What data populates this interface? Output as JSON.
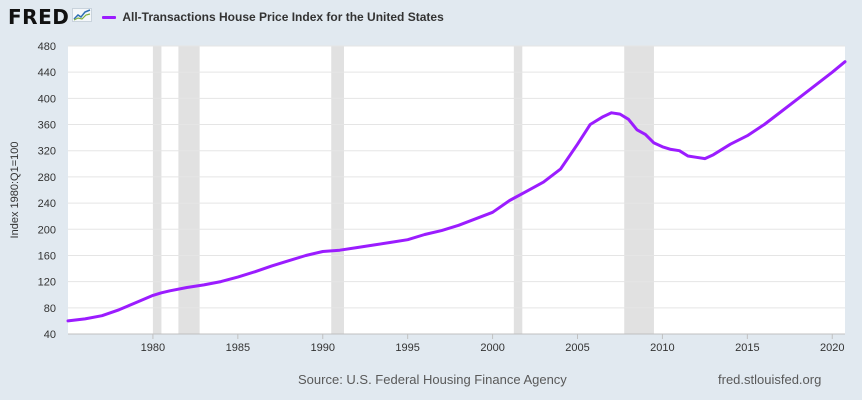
{
  "header": {
    "logo_text": "FRED",
    "logo_icon": "trend-line-chart-icon"
  },
  "footer": {
    "source": "Source: U.S. Federal Housing Finance Agency",
    "url": "fred.stlouisfed.org"
  },
  "colors": {
    "series": "#9b1cff",
    "recession": "#e1e1e1",
    "gridline": "#e5e5e5",
    "background": "#e1e9f0",
    "plot_background": "#ffffff"
  },
  "chart_data": {
    "type": "line",
    "title": "",
    "xlabel": "",
    "ylabel": "Index 1980:Q1=100",
    "xlim": [
      1975.0,
      2020.75
    ],
    "ylim": [
      40,
      480
    ],
    "x_ticks": [
      1980,
      1985,
      1990,
      1995,
      2000,
      2005,
      2010,
      2015,
      2020
    ],
    "y_ticks": [
      40,
      80,
      120,
      160,
      200,
      240,
      280,
      320,
      360,
      400,
      440,
      480
    ],
    "grid": true,
    "legend_position": "top-left",
    "recessions": [
      [
        1980.0,
        1980.5
      ],
      [
        1981.5,
        1982.75
      ],
      [
        1990.5,
        1991.25
      ],
      [
        2001.25,
        2001.75
      ],
      [
        2007.75,
        2009.5
      ]
    ],
    "series": [
      {
        "name": "All-Transactions House Price Index for the United States",
        "x": [
          1975.0,
          1976.0,
          1977.0,
          1978.0,
          1979.0,
          1980.0,
          1980.5,
          1981.0,
          1982.0,
          1983.0,
          1984.0,
          1985.0,
          1986.0,
          1987.0,
          1988.0,
          1989.0,
          1990.0,
          1991.0,
          1992.0,
          1993.0,
          1994.0,
          1995.0,
          1996.0,
          1997.0,
          1998.0,
          1999.0,
          2000.0,
          2001.0,
          2002.0,
          2003.0,
          2004.0,
          2005.0,
          2005.75,
          2006.5,
          2007.0,
          2007.5,
          2008.0,
          2008.5,
          2009.0,
          2009.5,
          2010.0,
          2010.5,
          2011.0,
          2011.5,
          2012.0,
          2012.5,
          2013.0,
          2014.0,
          2015.0,
          2016.0,
          2017.0,
          2018.0,
          2019.0,
          2020.0,
          2020.75
        ],
        "y": [
          60,
          63,
          68,
          77,
          88,
          99,
          103,
          106,
          111,
          115,
          120,
          127,
          135,
          144,
          152,
          160,
          166,
          168,
          172,
          176,
          180,
          184,
          192,
          198,
          206,
          216,
          226,
          244,
          258,
          272,
          292,
          330,
          360,
          372,
          378,
          376,
          368,
          352,
          345,
          332,
          326,
          322,
          320,
          312,
          310,
          308,
          314,
          330,
          343,
          360,
          380,
          400,
          420,
          440,
          456
        ]
      }
    ]
  }
}
